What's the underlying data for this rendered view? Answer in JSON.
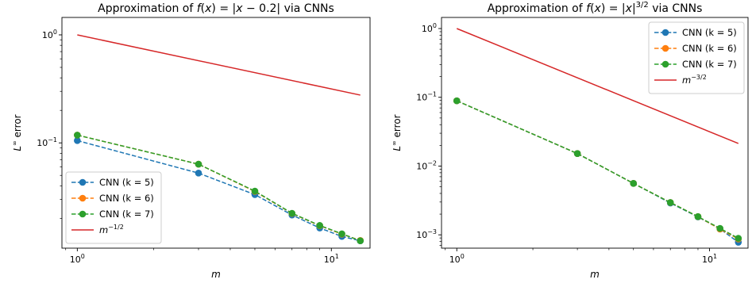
{
  "colors": {
    "k5": "#1f77b4",
    "k6": "#ff7f0e",
    "k7": "#2ca02c",
    "ref": "#d62728"
  },
  "chart_data": [
    {
      "type": "line",
      "title_parts": [
        "Approximation of ",
        "f",
        "(",
        "x",
        ") = |",
        "x",
        " − 0.2| via CNNs"
      ],
      "xlabel": "m",
      "ylabel_main": "L",
      "ylabel_sup": "∞",
      "ylabel_rest": " error",
      "xscale": "log",
      "yscale": "log",
      "xlim": [
        0.87,
        14.2
      ],
      "ylim": [
        0.0106,
        1.45
      ],
      "grid": false,
      "legend_loc": "lower-left",
      "x_ticks": [
        {
          "value": 1,
          "base": "10",
          "exp": "0"
        },
        {
          "value": 10,
          "base": "10",
          "exp": "1"
        }
      ],
      "y_ticks": [
        {
          "value": 1,
          "base": "10",
          "exp": "0"
        },
        {
          "value": 0.1,
          "base": "10",
          "exp": "−1"
        }
      ],
      "series": [
        {
          "name": "CNN (k = 5)",
          "color_key": "k5",
          "style": "dashed-marker",
          "x": [
            1,
            3,
            5,
            7,
            9,
            11,
            13
          ],
          "y": [
            0.105,
            0.0525,
            0.0332,
            0.0215,
            0.0163,
            0.0136,
            0.0124
          ]
        },
        {
          "name": "CNN (k = 6)",
          "color_key": "k6",
          "style": "dashed-marker",
          "x": [
            1,
            3,
            5,
            7,
            9,
            11,
            13
          ],
          "y": [
            0.118,
            0.0635,
            0.0355,
            0.0222,
            0.0171,
            0.0143,
            0.0125
          ]
        },
        {
          "name": "CNN (k = 7)",
          "color_key": "k7",
          "style": "dashed-marker",
          "x": [
            1,
            3,
            5,
            7,
            9,
            11,
            13
          ],
          "y": [
            0.118,
            0.0635,
            0.0358,
            0.0223,
            0.0172,
            0.0144,
            0.0124
          ]
        },
        {
          "name_base": "m",
          "name_sup": "−1/2",
          "color_key": "ref",
          "style": "solid",
          "x": [
            1,
            13
          ],
          "y": [
            1.0,
            0.277
          ]
        }
      ]
    },
    {
      "type": "line",
      "title_parts": [
        "Approximation of ",
        "f",
        "(",
        "x",
        ") = |",
        "x",
        "|",
        "3/2",
        " via CNNs"
      ],
      "xlabel": "m",
      "ylabel_main": "L",
      "ylabel_sup": "∞",
      "ylabel_rest": " error",
      "xscale": "log",
      "yscale": "log",
      "xlim": [
        0.87,
        14.2
      ],
      "ylim": [
        0.00064,
        1.45
      ],
      "grid": false,
      "legend_loc": "upper-right",
      "x_ticks": [
        {
          "value": 1,
          "base": "10",
          "exp": "0"
        },
        {
          "value": 10,
          "base": "10",
          "exp": "1"
        }
      ],
      "y_ticks": [
        {
          "value": 1,
          "base": "10",
          "exp": "0"
        },
        {
          "value": 0.1,
          "base": "10",
          "exp": "−1"
        },
        {
          "value": 0.01,
          "base": "10",
          "exp": "−2"
        },
        {
          "value": 0.001,
          "base": "10",
          "exp": "−3"
        }
      ],
      "series": [
        {
          "name": "CNN (k = 5)",
          "color_key": "k5",
          "style": "dashed-marker",
          "x": [
            1,
            3,
            5,
            7,
            9,
            11,
            13
          ],
          "y": [
            0.089,
            0.0152,
            0.0056,
            0.0029,
            0.00182,
            0.00122,
            0.00078
          ]
        },
        {
          "name": "CNN (k = 6)",
          "color_key": "k6",
          "style": "dashed-marker",
          "x": [
            1,
            3,
            5,
            7,
            9,
            11,
            13
          ],
          "y": [
            0.089,
            0.0152,
            0.0056,
            0.00295,
            0.00184,
            0.00121,
            0.00087
          ]
        },
        {
          "name": "CNN (k = 7)",
          "color_key": "k7",
          "style": "dashed-marker",
          "x": [
            1,
            3,
            5,
            7,
            9,
            11,
            13
          ],
          "y": [
            0.089,
            0.0152,
            0.0056,
            0.00295,
            0.00184,
            0.00124,
            0.00089
          ]
        },
        {
          "name_base": "m",
          "name_sup": "−3/2",
          "color_key": "ref",
          "style": "solid",
          "x": [
            1,
            13
          ],
          "y": [
            1.0,
            0.0213
          ]
        }
      ]
    }
  ]
}
